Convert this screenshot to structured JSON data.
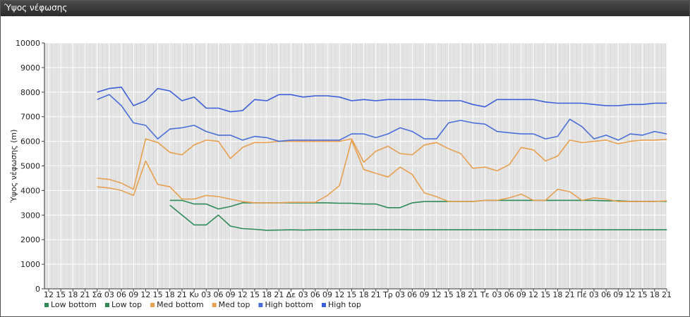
{
  "window": {
    "title": "Ύψος νέφωσης"
  },
  "chart_data": {
    "type": "line",
    "title": "Ύψος νέφωσης",
    "ylabel": "Ύψος νέφωσης (m)",
    "xlabel": "",
    "ylim": [
      0,
      10000
    ],
    "yticks": [
      0,
      1000,
      2000,
      3000,
      4000,
      5000,
      6000,
      7000,
      8000,
      9000,
      10000
    ],
    "grid": true,
    "legend": "bottom-left",
    "x_tick_labels": [
      "12",
      "15",
      "18",
      "21",
      "Σά",
      "03",
      "06",
      "09",
      "12",
      "15",
      "18",
      "21",
      "Κυ",
      "03",
      "06",
      "09",
      "12",
      "15",
      "18",
      "21",
      "Δε",
      "03",
      "06",
      "09",
      "12",
      "15",
      "18",
      "21",
      "Τρ",
      "03",
      "06",
      "09",
      "12",
      "15",
      "18",
      "21",
      "Τε",
      "03",
      "06",
      "09",
      "12",
      "15",
      "18",
      "21",
      "Πέ",
      "03",
      "06",
      "09",
      "12",
      "15",
      "18",
      "21"
    ],
    "series": [
      {
        "name": "Low bottom",
        "color": "#2e8b57",
        "values": [
          null,
          null,
          null,
          null,
          null,
          null,
          null,
          null,
          null,
          null,
          3400,
          3000,
          2600,
          2600,
          3000,
          2550,
          2450,
          2420,
          2380,
          2390,
          2400,
          2390,
          2400,
          2400,
          2410,
          2410,
          2410,
          2410,
          2410,
          2410,
          2400,
          2400,
          2400,
          2400,
          2400,
          2400,
          2400,
          2400,
          2400,
          2400,
          2400,
          2400,
          2400,
          2400,
          2400,
          2400,
          2400,
          2400,
          2400,
          2400,
          2400,
          2400
        ]
      },
      {
        "name": "Low top",
        "color": "#2e8b57",
        "values": [
          null,
          null,
          null,
          null,
          null,
          null,
          null,
          null,
          null,
          null,
          3600,
          3600,
          3450,
          3450,
          3250,
          3350,
          3500,
          3500,
          3500,
          3500,
          3500,
          3500,
          3500,
          3500,
          3480,
          3480,
          3450,
          3450,
          3300,
          3300,
          3500,
          3550,
          3550,
          3550,
          3550,
          3550,
          3600,
          3600,
          3600,
          3600,
          3600,
          3600,
          3600,
          3600,
          3600,
          3600,
          3580,
          3580,
          3560,
          3560,
          3560,
          3560
        ]
      },
      {
        "name": "Med bottom",
        "color": "#e8a050",
        "values": [
          null,
          null,
          null,
          null,
          4150,
          4100,
          4000,
          3800,
          5200,
          4250,
          4150,
          3650,
          3650,
          3800,
          3750,
          3650,
          3550,
          3500,
          3500,
          3500,
          3520,
          3520,
          3520,
          3800,
          4200,
          6050,
          4850,
          4700,
          4550,
          4950,
          4650,
          3900,
          3750,
          3550,
          3550,
          3550,
          3600,
          3600,
          3700,
          3850,
          3600,
          3600,
          4050,
          3950,
          3600,
          3700,
          3650,
          3550,
          3550,
          3550,
          3550,
          3580
        ]
      },
      {
        "name": "Med top",
        "color": "#e8a050",
        "values": [
          null,
          null,
          null,
          null,
          4500,
          4450,
          4300,
          4050,
          6100,
          5950,
          5550,
          5450,
          5850,
          6050,
          6000,
          5300,
          5750,
          5950,
          5950,
          6000,
          6000,
          6000,
          6000,
          6000,
          6000,
          6100,
          5150,
          5600,
          5800,
          5500,
          5450,
          5850,
          5950,
          5700,
          5500,
          4900,
          4950,
          4800,
          5050,
          5750,
          5650,
          5200,
          5400,
          6050,
          5950,
          6000,
          6050,
          5900,
          6000,
          6050,
          6050,
          6080
        ]
      },
      {
        "name": "High bottom",
        "color": "#4a6fd8",
        "values": [
          null,
          null,
          null,
          null,
          7700,
          7900,
          7450,
          6750,
          6650,
          6100,
          6500,
          6550,
          6650,
          6400,
          6250,
          6250,
          6050,
          6200,
          6150,
          6000,
          6050,
          6050,
          6050,
          6050,
          6050,
          6300,
          6300,
          6150,
          6300,
          6550,
          6400,
          6100,
          6100,
          6750,
          6850,
          6750,
          6700,
          6400,
          6350,
          6300,
          6300,
          6100,
          6200,
          6900,
          6600,
          6100,
          6250,
          6050,
          6300,
          6250,
          6400,
          6300
        ]
      },
      {
        "name": "High top",
        "color": "#3b5fd9",
        "values": [
          null,
          null,
          null,
          null,
          8000,
          8150,
          8200,
          7450,
          7650,
          8150,
          8050,
          7650,
          7800,
          7350,
          7350,
          7200,
          7250,
          7700,
          7650,
          7900,
          7900,
          7800,
          7850,
          7850,
          7800,
          7650,
          7700,
          7650,
          7700,
          7700,
          7700,
          7700,
          7650,
          7650,
          7650,
          7500,
          7400,
          7700,
          7700,
          7700,
          7700,
          7600,
          7550,
          7550,
          7550,
          7500,
          7450,
          7450,
          7500,
          7500,
          7550,
          7550
        ]
      }
    ]
  }
}
